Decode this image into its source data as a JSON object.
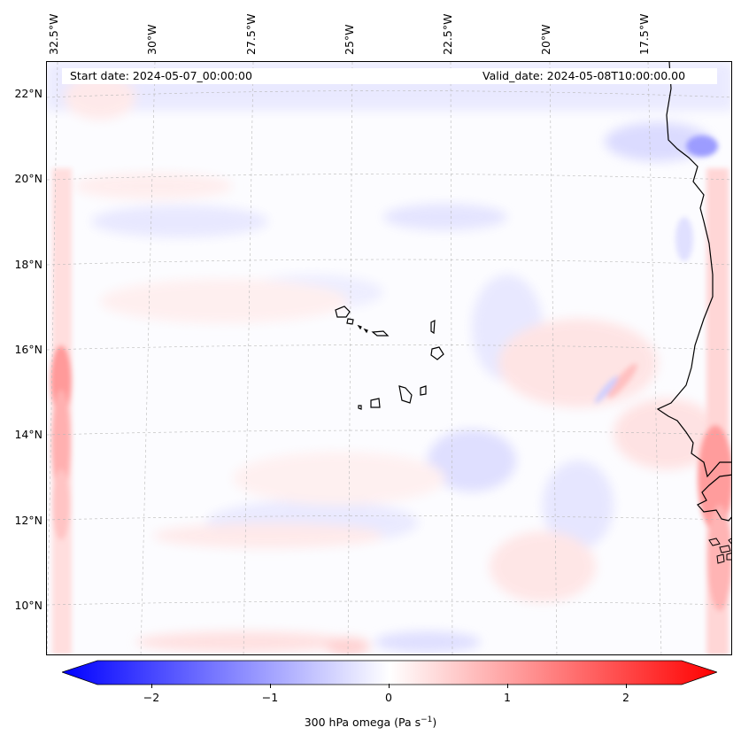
{
  "header": {
    "start_date": "Start date: 2024-05-07_00:00:00",
    "valid_date": "Valid_date: 2024-05-08T10:00:00.00"
  },
  "axes": {
    "lon_labels": [
      "32.5°W",
      "30°W",
      "27.5°W",
      "25°W",
      "22.5°W",
      "20°W",
      "17.5°W"
    ],
    "lat_labels": [
      "22°N",
      "20°N",
      "18°N",
      "16°N",
      "14°N",
      "12°N",
      "10°N"
    ]
  },
  "colorbar": {
    "ticks": [
      "−2",
      "−1",
      "0",
      "1",
      "2"
    ],
    "label_main": "300 hPa omega (Pa s",
    "label_sup": "−1",
    "label_end": ")",
    "colors": {
      "negative": "#0000ff",
      "zero": "#ffffff",
      "positive": "#ff0000"
    }
  },
  "map": {
    "gridlines": true,
    "coastline_color": "#000000"
  }
}
